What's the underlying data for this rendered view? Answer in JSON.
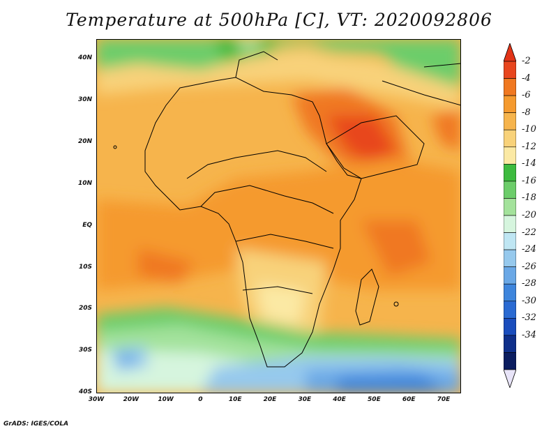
{
  "title": "Temperature at 500hPa [C], VT: 2020092806",
  "credit": "GrADS: IGES/COLA",
  "map": {
    "lat_range": [
      -40,
      45
    ],
    "lon_range": [
      -30,
      75
    ],
    "lat_labels": [
      "40N",
      "30N",
      "20N",
      "10N",
      "EQ",
      "10S",
      "20S",
      "30S",
      "40S"
    ],
    "lon_labels": [
      "30W",
      "20W",
      "10W",
      "0",
      "10E",
      "20E",
      "30E",
      "40E",
      "50E",
      "60E",
      "70E"
    ]
  },
  "colorbar": {
    "labels": [
      "-2",
      "-4",
      "-6",
      "-8",
      "-10",
      "-12",
      "-14",
      "-16",
      "-18",
      "-20",
      "-22",
      "-24",
      "-26",
      "-28",
      "-30",
      "-32",
      "-34"
    ],
    "colors": [
      "#e8461e",
      "#f07820",
      "#f59a2e",
      "#f6b44c",
      "#f8d27a",
      "#fbe9a4",
      "#3dbb3f",
      "#6ccd6a",
      "#a3e29b",
      "#d6f5de",
      "#bfe6f3",
      "#96c9ed",
      "#6aa8e6",
      "#3e85dc",
      "#2a6ad2",
      "#1a4dbd",
      "#0f2f8a",
      "#0b1d60"
    ],
    "over_color": "#e23418",
    "under_color": "#e8e4f8"
  }
}
